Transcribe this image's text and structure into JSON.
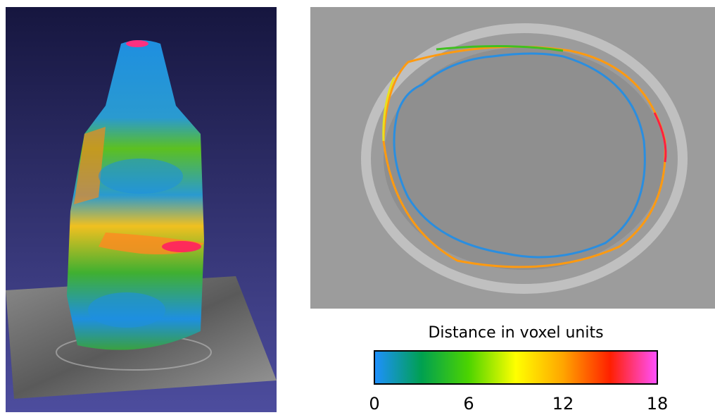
{
  "colorbar": {
    "label": "Distance in voxel units",
    "lim": [
      0,
      18
    ],
    "ticks": [
      0,
      6,
      12,
      18
    ],
    "colors": [
      "#1e90ff",
      "#00a050",
      "#4cd400",
      "#ffff00",
      "#ffa500",
      "#ff2000",
      "#ff50ff"
    ]
  }
}
